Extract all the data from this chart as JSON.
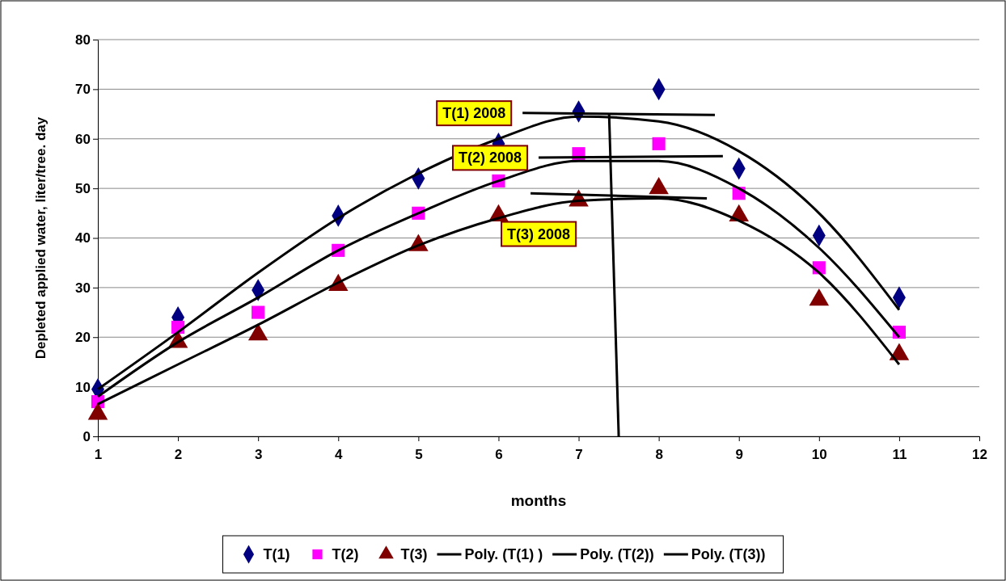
{
  "chart_data": {
    "type": "scatter",
    "xlabel": "months",
    "ylabel": "Depleted applied water, liter/tree. day",
    "xlim": [
      1,
      12
    ],
    "xticks": [
      1,
      2,
      3,
      4,
      5,
      6,
      7,
      8,
      9,
      10,
      11,
      12
    ],
    "ylim": [
      0,
      80
    ],
    "yticks": [
      0,
      10,
      20,
      30,
      40,
      50,
      60,
      70,
      80
    ],
    "grid": "y",
    "legend": "bottom",
    "series": [
      {
        "name": "T(1)",
        "marker": "diamond",
        "color": "#000080",
        "x": [
          1,
          2,
          3,
          4,
          5,
          6,
          7,
          8,
          9,
          10,
          11
        ],
        "values": [
          9.5,
          24,
          29.5,
          44.5,
          52,
          59,
          65.5,
          70,
          54,
          40.5,
          28
        ]
      },
      {
        "name": "T(2)",
        "marker": "square",
        "color": "#ff00ff",
        "x": [
          1,
          2,
          3,
          4,
          5,
          6,
          7,
          8,
          9,
          10,
          11
        ],
        "values": [
          7,
          22,
          25,
          37.5,
          45,
          51.5,
          57,
          59,
          49,
          34,
          21
        ]
      },
      {
        "name": "T(3)",
        "marker": "triangle",
        "color": "#800000",
        "x": [
          1,
          2,
          3,
          4,
          5,
          6,
          7,
          8,
          9,
          10,
          11
        ],
        "values": [
          4.5,
          19,
          20.5,
          30.5,
          38.5,
          44.5,
          47.5,
          50,
          44.5,
          27.5,
          16.5
        ]
      },
      {
        "name": "Poly. (T(1) )",
        "type": "line",
        "marker": "none",
        "color": "#000000",
        "x": [
          1,
          2,
          3,
          4,
          5,
          6,
          7,
          8,
          9,
          10,
          11
        ],
        "values": [
          9.5,
          21,
          33,
          44,
          53,
          60,
          64.5,
          63.5,
          57.5,
          45,
          25.5
        ]
      },
      {
        "name": "Poly. (T(2))",
        "type": "line",
        "marker": "none",
        "color": "#000000",
        "x": [
          1,
          2,
          3,
          4,
          5,
          6,
          7,
          8,
          9,
          10,
          11
        ],
        "values": [
          8,
          19,
          28,
          37.5,
          45,
          51.5,
          55.5,
          55.5,
          50,
          38,
          20
        ]
      },
      {
        "name": "Poly. (T(3))",
        "type": "line",
        "marker": "none",
        "color": "#000000",
        "x": [
          1,
          2,
          3,
          4,
          5,
          6,
          7,
          8,
          9,
          10,
          11
        ],
        "values": [
          6.5,
          14.5,
          22.5,
          31,
          38.5,
          44,
          47.5,
          48,
          43.5,
          33,
          14.5
        ]
      },
      {
        "type": "line",
        "marker": "none",
        "color": "#000000",
        "x": [
          6.3,
          8.7
        ],
        "values": [
          65.2,
          64.8
        ]
      },
      {
        "type": "line",
        "marker": "none",
        "color": "#000000",
        "x": [
          6.5,
          8.8
        ],
        "values": [
          56.2,
          56.5
        ]
      },
      {
        "type": "line",
        "marker": "none",
        "color": "#000000",
        "x": [
          6.4,
          8.6
        ],
        "values": [
          49,
          48
        ]
      },
      {
        "type": "line",
        "marker": "none",
        "color": "#000000",
        "x": [
          7.38,
          7.5
        ],
        "values": [
          65,
          0
        ]
      }
    ],
    "annotations": [
      "T(1) 2008",
      "T(2) 2008",
      "T(3) 2008"
    ]
  }
}
